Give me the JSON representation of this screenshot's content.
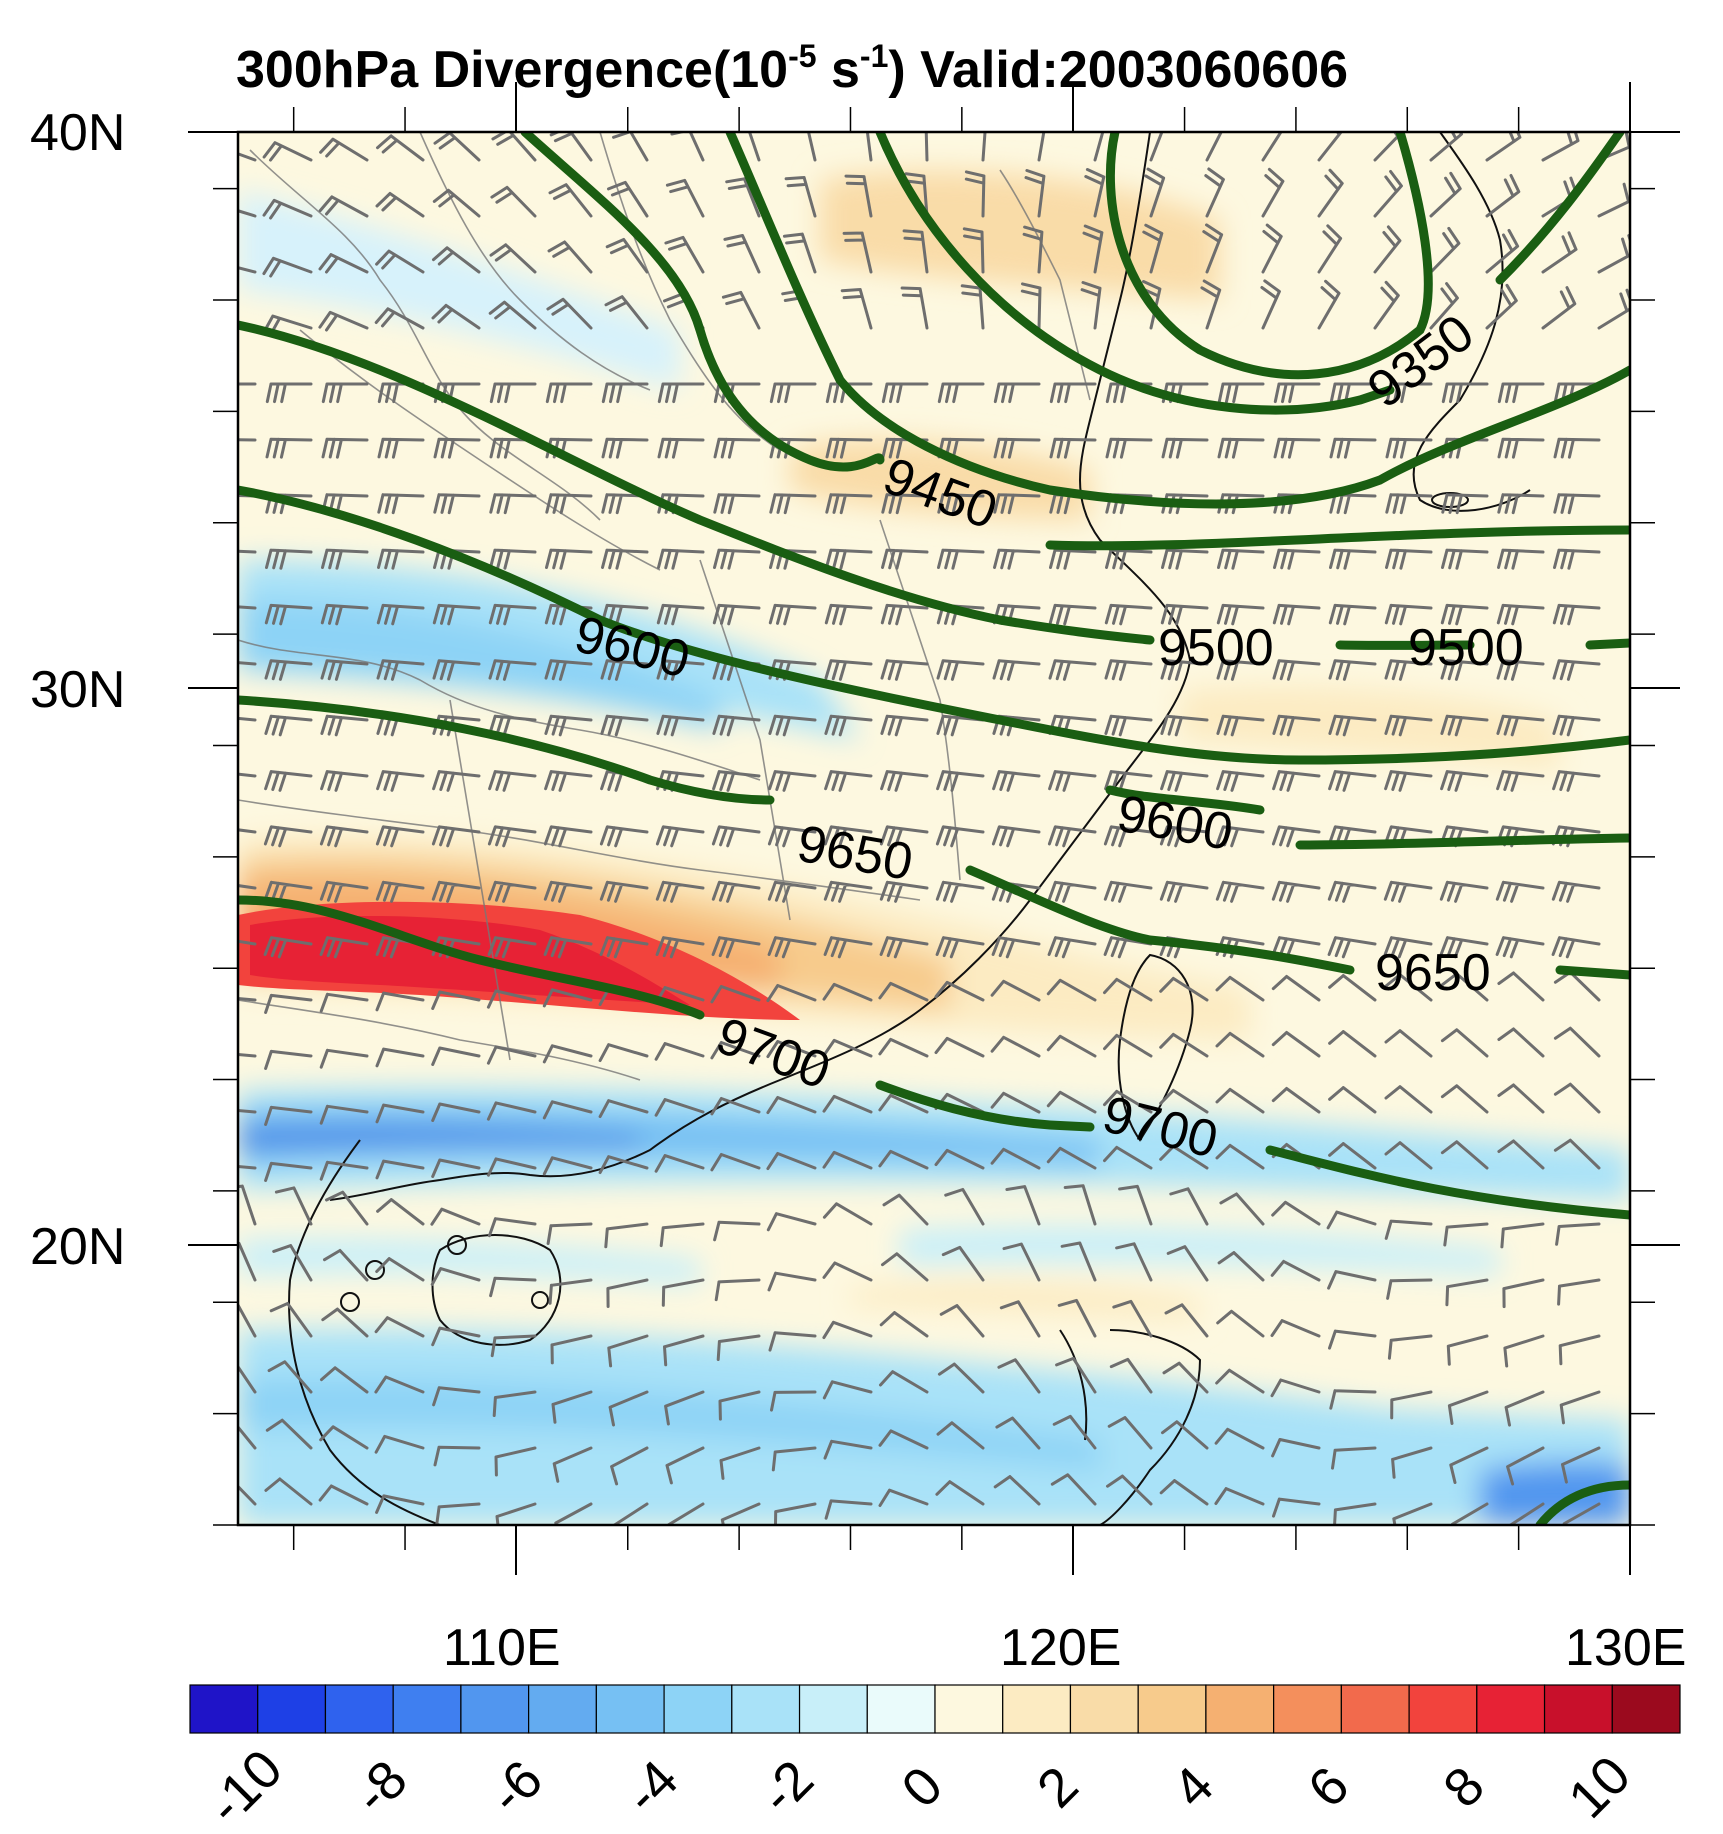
{
  "title": {
    "main": "300hPa Divergence(10",
    "exp1": "-5",
    "mid": " s",
    "exp2": "-1",
    "tail": ") Valid:2003060606"
  },
  "chart_data": {
    "type": "heatmap",
    "title": "300hPa Divergence(10^-5 s^-1) Valid:2003060606",
    "lon_range": [
      105,
      130
    ],
    "lat_range": [
      15,
      40
    ],
    "lat_ticks": [
      "20N",
      "30N",
      "40N"
    ],
    "lon_ticks": [
      "110E",
      "120E",
      "130E"
    ],
    "colorbar": {
      "labels": [
        "-10",
        "-8",
        "-6",
        "-4",
        "-2",
        "0",
        "2",
        "4",
        "6",
        "8",
        "10"
      ],
      "colors": [
        "#1f14c8",
        "#1e40e6",
        "#2f62ee",
        "#3f7ff0",
        "#5196ef",
        "#63abf0",
        "#76c0f3",
        "#8dd3f6",
        "#a9e2f8",
        "#c8eff9",
        "#eafbfb",
        "#fdf8df",
        "#fcebc2",
        "#f9dca8",
        "#f7cb8c",
        "#f5b071",
        "#f48f5c",
        "#f26a4c",
        "#f2433d",
        "#e72235",
        "#c8102b",
        "#9b0a1e"
      ]
    },
    "contour_labels": [
      {
        "text": "9350"
      },
      {
        "text": "9450"
      },
      {
        "text": "9500"
      },
      {
        "text": "9500"
      },
      {
        "text": "9600"
      },
      {
        "text": "9600"
      },
      {
        "text": "9650"
      },
      {
        "text": "9650"
      },
      {
        "text": "9700"
      },
      {
        "text": "9700"
      }
    ]
  }
}
